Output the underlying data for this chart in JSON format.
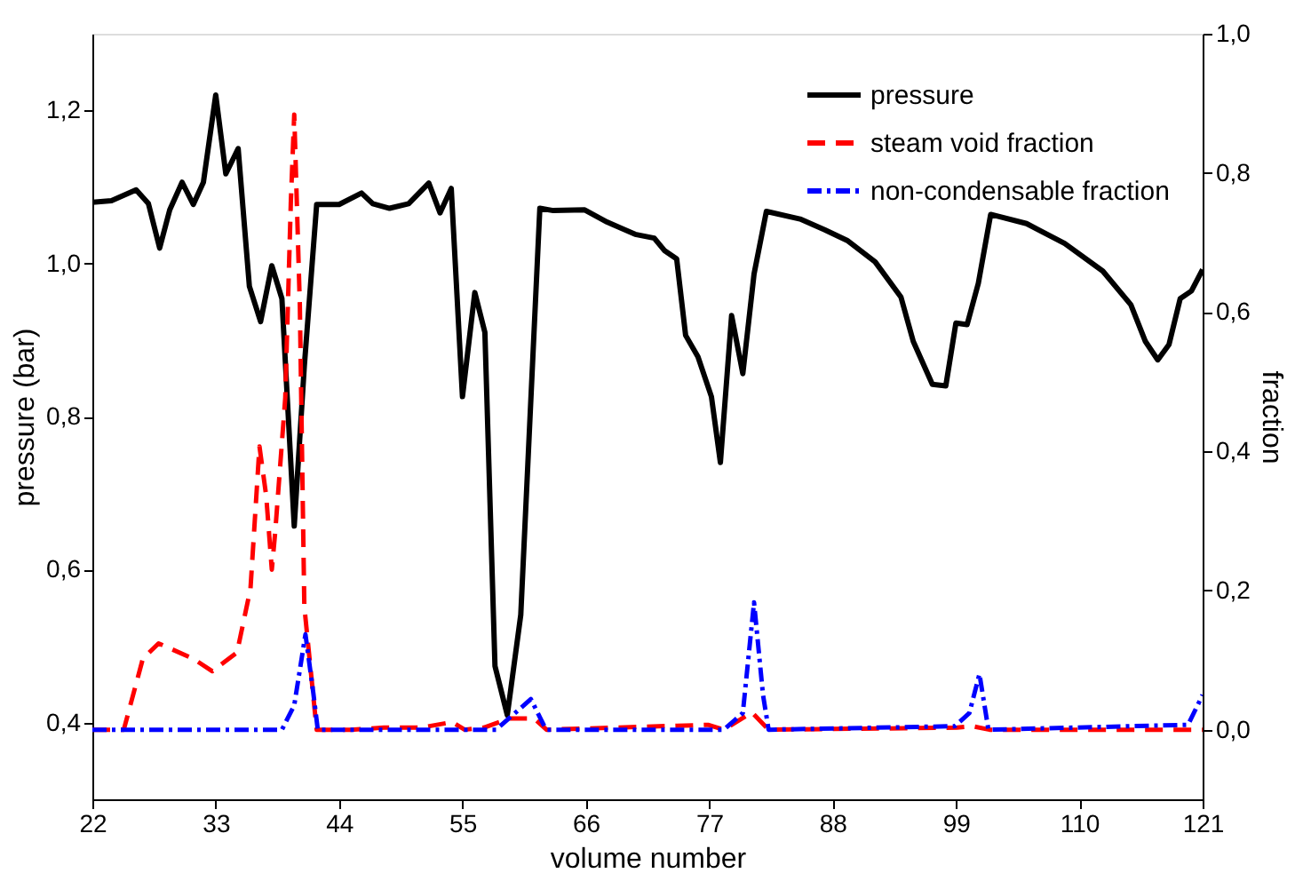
{
  "chart_data": {
    "type": "line",
    "xlabel": "volume number",
    "ylabel": "pressure (bar)",
    "y2label": "fraction",
    "xlim": [
      22,
      121
    ],
    "xticks": [
      22,
      33,
      44,
      55,
      66,
      77,
      88,
      99,
      110,
      121
    ],
    "ylim": [
      0.3,
      1.3
    ],
    "yticks": [
      {
        "value": 0.4,
        "label": "0,4"
      },
      {
        "value": 0.6,
        "label": "0,6"
      },
      {
        "value": 0.8,
        "label": "0,8"
      },
      {
        "value": 1.0,
        "label": "1,0"
      },
      {
        "value": 1.2,
        "label": "1,2"
      }
    ],
    "y2lim": [
      -0.1,
      1.0
    ],
    "y2ticks": [
      {
        "value": 0.0,
        "label": "0,0"
      },
      {
        "value": 0.2,
        "label": "0,2"
      },
      {
        "value": 0.4,
        "label": "0,4"
      },
      {
        "value": 0.6,
        "label": "0,6"
      },
      {
        "value": 0.8,
        "label": "0,8"
      },
      {
        "value": 1.0,
        "label": "1,0"
      }
    ],
    "grid": false,
    "legend": "top right",
    "marker": "none",
    "series": [
      {
        "name": "pressure",
        "color": "#000000",
        "line_style": "solid",
        "x": [
          22,
          23.7,
          25.9,
          27,
          28,
          28.9,
          30,
          31,
          31.9,
          33,
          33.9,
          35,
          36,
          37,
          38,
          38.9,
          40,
          40.9,
          42,
          44,
          46,
          47,
          48.5,
          50.2,
          52,
          53,
          54,
          55,
          56.1,
          57,
          57.9,
          59,
          60.2,
          61.9,
          63.1,
          65.9,
          67.9,
          70.4,
          72.1,
          73,
          74.1,
          74.9,
          76,
          77.2,
          78,
          79,
          80,
          81,
          82.1,
          85.1,
          87.3,
          89.3,
          91.8,
          94.1,
          95.2,
          96.9,
          98.1,
          99,
          100,
          101,
          102.1,
          105.3,
          108.7,
          112.1,
          114.6,
          115.9,
          117,
          118,
          119,
          120,
          121
        ],
        "values": [
          1.08,
          1.082,
          1.096,
          1.078,
          1.02,
          1.07,
          1.106,
          1.077,
          1.106,
          1.22,
          1.117,
          1.15,
          0.97,
          0.924,
          0.997,
          0.954,
          0.657,
          0.866,
          1.077,
          1.077,
          1.092,
          1.078,
          1.072,
          1.078,
          1.105,
          1.066,
          1.098,
          0.826,
          0.962,
          0.91,
          0.474,
          0.41,
          0.541,
          1.072,
          1.069,
          1.07,
          1.054,
          1.038,
          1.033,
          1.017,
          1.006,
          0.906,
          0.878,
          0.826,
          0.74,
          0.932,
          0.856,
          0.986,
          1.068,
          1.058,
          1.044,
          1.03,
          1.002,
          0.956,
          0.898,
          0.842,
          0.84,
          0.922,
          0.92,
          0.974,
          1.064,
          1.052,
          1.026,
          0.99,
          0.946,
          0.898,
          0.874,
          0.894,
          0.954,
          0.964,
          0.992
        ]
      },
      {
        "name": "steam void fraction",
        "color": "#ff0000",
        "line_style": "dashed",
        "axis": "y2",
        "x": [
          22,
          24.8,
          26.5,
          27.9,
          31,
          32.7,
          34.9,
          36.1,
          36.9,
          37.5,
          38,
          38.3,
          39.2,
          39.7,
          40,
          40.5,
          40.9,
          42,
          45,
          48,
          51.3,
          54.1,
          55.2,
          56.9,
          59.2,
          61.4,
          62.5,
          76.9,
          78.3,
          80.8,
          82.3,
          99.1,
          100.5,
          102,
          121
        ],
        "values": [
          0,
          0,
          0.102,
          0.124,
          0.102,
          0.084,
          0.111,
          0.203,
          0.407,
          0.336,
          0.23,
          0.283,
          0.477,
          0.76,
          0.884,
          0.61,
          0.177,
          0,
          0,
          0.003,
          0.003,
          0.011,
          0,
          0.003,
          0.016,
          0.016,
          0,
          0.007,
          0,
          0.025,
          0,
          0.003,
          0.005,
          0,
          0
        ]
      },
      {
        "name": "non-condensable fraction",
        "color": "#0000ff",
        "line_style": "dashdot",
        "axis": "y2",
        "x": [
          22,
          38.9,
          40,
          41,
          41.7,
          42.1,
          58,
          61.1,
          62.3,
          62.5,
          78.3,
          80,
          81,
          81.8,
          82.3,
          98.9,
          100.2,
          101.1,
          101.9,
          119.7,
          121
        ],
        "values": [
          0,
          0,
          0.035,
          0.137,
          0.053,
          0,
          0,
          0.044,
          0.005,
          0,
          0,
          0.024,
          0.183,
          0.05,
          0,
          0.005,
          0.024,
          0.08,
          0,
          0.007,
          0.05
        ]
      }
    ]
  }
}
